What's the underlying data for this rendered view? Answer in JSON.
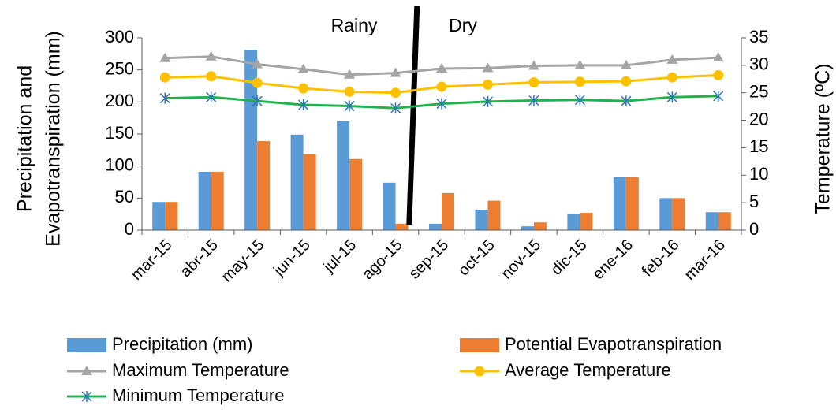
{
  "chart_data": {
    "type": "bar",
    "categories": [
      "mar-15",
      "abr-15",
      "may-15",
      "jun-15",
      "jul-15",
      "ago-15",
      "sep-15",
      "oct-15",
      "nov-15",
      "dic-15",
      "ene-16",
      "feb-16",
      "mar-16"
    ],
    "ylabel_left_line1": "Precipitation and",
    "ylabel_left_line2": "Evapotranspiration (mm)",
    "ylabel_right": "Temperature (ºC)",
    "ylim_left": [
      0,
      300
    ],
    "yticks_left": [
      0,
      50,
      100,
      150,
      200,
      250,
      300
    ],
    "ylim_right": [
      0,
      35
    ],
    "yticks_right": [
      0,
      5,
      10,
      15,
      20,
      25,
      30,
      35
    ],
    "grid": false,
    "legend_position": "bottom",
    "annotations": {
      "rainy": "Rainy",
      "dry": "Dry"
    },
    "divider_between": [
      "ago-15",
      "sep-15"
    ],
    "bar_series": [
      {
        "name": "Precipitation (mm)",
        "color": "#5B9BD5",
        "values": [
          44,
          91,
          281,
          149,
          170,
          74,
          10,
          32,
          6,
          25,
          83,
          50,
          28
        ]
      },
      {
        "name": "Potential Evapotranspiration",
        "color": "#ED7D31",
        "values": [
          44,
          91,
          139,
          118,
          111,
          10,
          58,
          46,
          12,
          27,
          83,
          50,
          28
        ]
      }
    ],
    "line_series": [
      {
        "name": "Maximum Temperature",
        "color": "#A5A5A5",
        "marker": "triangle",
        "values": [
          31.3,
          31.6,
          30.2,
          29.3,
          28.3,
          28.6,
          29.4,
          29.5,
          29.9,
          30.0,
          30.0,
          31.0,
          31.4
        ]
      },
      {
        "name": "Average Temperature",
        "color": "#FFC000",
        "marker": "circle",
        "values": [
          27.8,
          28.0,
          26.8,
          25.8,
          25.2,
          25.0,
          26.1,
          26.5,
          26.9,
          27.0,
          27.1,
          27.8,
          28.2
        ]
      },
      {
        "name": "Minimum Temperature",
        "color": "#22B14C",
        "marker": "asterisk",
        "values": [
          24.0,
          24.2,
          23.5,
          22.8,
          22.6,
          22.2,
          23.0,
          23.4,
          23.6,
          23.7,
          23.5,
          24.2,
          24.4
        ]
      }
    ]
  }
}
